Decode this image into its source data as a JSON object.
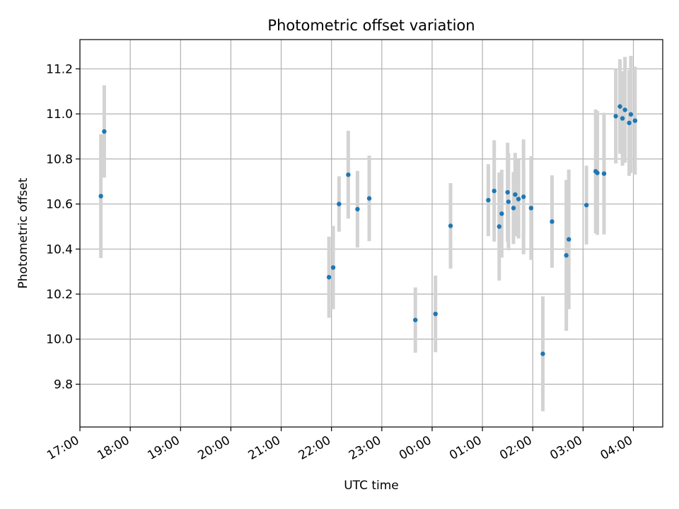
{
  "chart_data": {
    "type": "scatter",
    "title": "Photometric offset variation",
    "xlabel": "UTC time",
    "ylabel": "Photometric offset",
    "x_axis_type": "time",
    "xlim": [
      "17:00",
      "04:35"
    ],
    "ylim": [
      9.61,
      11.33
    ],
    "x_ticks": [
      "17:00",
      "18:00",
      "19:00",
      "20:00",
      "21:00",
      "22:00",
      "23:00",
      "00:00",
      "01:00",
      "02:00",
      "03:00",
      "04:00"
    ],
    "y_ticks": [
      9.8,
      10.0,
      10.2,
      10.4,
      10.6,
      10.8,
      11.0,
      11.2
    ],
    "grid": true,
    "marker_color": "#1f77b4",
    "errorbar_color": "#d3d3d3",
    "points": [
      {
        "x": "17:25",
        "y": 10.635,
        "yerr": 0.275
      },
      {
        "x": "17:29",
        "y": 10.922,
        "yerr": 0.205
      },
      {
        "x": "21:57",
        "y": 10.275,
        "yerr": 0.18
      },
      {
        "x": "22:02",
        "y": 10.318,
        "yerr": 0.185
      },
      {
        "x": "22:09",
        "y": 10.6,
        "yerr": 0.123
      },
      {
        "x": "22:20",
        "y": 10.73,
        "yerr": 0.195
      },
      {
        "x": "22:31",
        "y": 10.577,
        "yerr": 0.17
      },
      {
        "x": "22:45",
        "y": 10.625,
        "yerr": 0.19
      },
      {
        "x": "23:40",
        "y": 10.085,
        "yerr": 0.145
      },
      {
        "x": "00:04",
        "y": 10.112,
        "yerr": 0.17
      },
      {
        "x": "00:22",
        "y": 10.503,
        "yerr": 0.19
      },
      {
        "x": "01:07",
        "y": 10.617,
        "yerr": 0.16
      },
      {
        "x": "01:14",
        "y": 10.658,
        "yerr": 0.225
      },
      {
        "x": "01:20",
        "y": 10.5,
        "yerr": 0.24
      },
      {
        "x": "01:23",
        "y": 10.557,
        "yerr": 0.195
      },
      {
        "x": "01:30",
        "y": 10.652,
        "yerr": 0.22
      },
      {
        "x": "01:31",
        "y": 10.61,
        "yerr": 0.215
      },
      {
        "x": "01:37",
        "y": 10.582,
        "yerr": 0.16
      },
      {
        "x": "01:39",
        "y": 10.642,
        "yerr": 0.185
      },
      {
        "x": "01:43",
        "y": 10.622,
        "yerr": 0.175
      },
      {
        "x": "01:49",
        "y": 10.632,
        "yerr": 0.255
      },
      {
        "x": "01:58",
        "y": 10.582,
        "yerr": 0.23
      },
      {
        "x": "02:12",
        "y": 9.935,
        "yerr": 0.255
      },
      {
        "x": "02:23",
        "y": 10.522,
        "yerr": 0.205
      },
      {
        "x": "02:40",
        "y": 10.372,
        "yerr": 0.335
      },
      {
        "x": "02:43",
        "y": 10.443,
        "yerr": 0.31
      },
      {
        "x": "03:04",
        "y": 10.595,
        "yerr": 0.175
      },
      {
        "x": "03:15",
        "y": 10.745,
        "yerr": 0.275
      },
      {
        "x": "03:17",
        "y": 10.738,
        "yerr": 0.275
      },
      {
        "x": "03:25",
        "y": 10.735,
        "yerr": 0.27
      },
      {
        "x": "03:39",
        "y": 10.99,
        "yerr": 0.21
      },
      {
        "x": "03:44",
        "y": 11.033,
        "yerr": 0.21
      },
      {
        "x": "03:47",
        "y": 10.98,
        "yerr": 0.21
      },
      {
        "x": "03:50",
        "y": 11.018,
        "yerr": 0.235
      },
      {
        "x": "03:55",
        "y": 10.96,
        "yerr": 0.235
      },
      {
        "x": "03:57",
        "y": 10.998,
        "yerr": 0.26
      },
      {
        "x": "04:02",
        "y": 10.97,
        "yerr": 0.24
      }
    ]
  }
}
